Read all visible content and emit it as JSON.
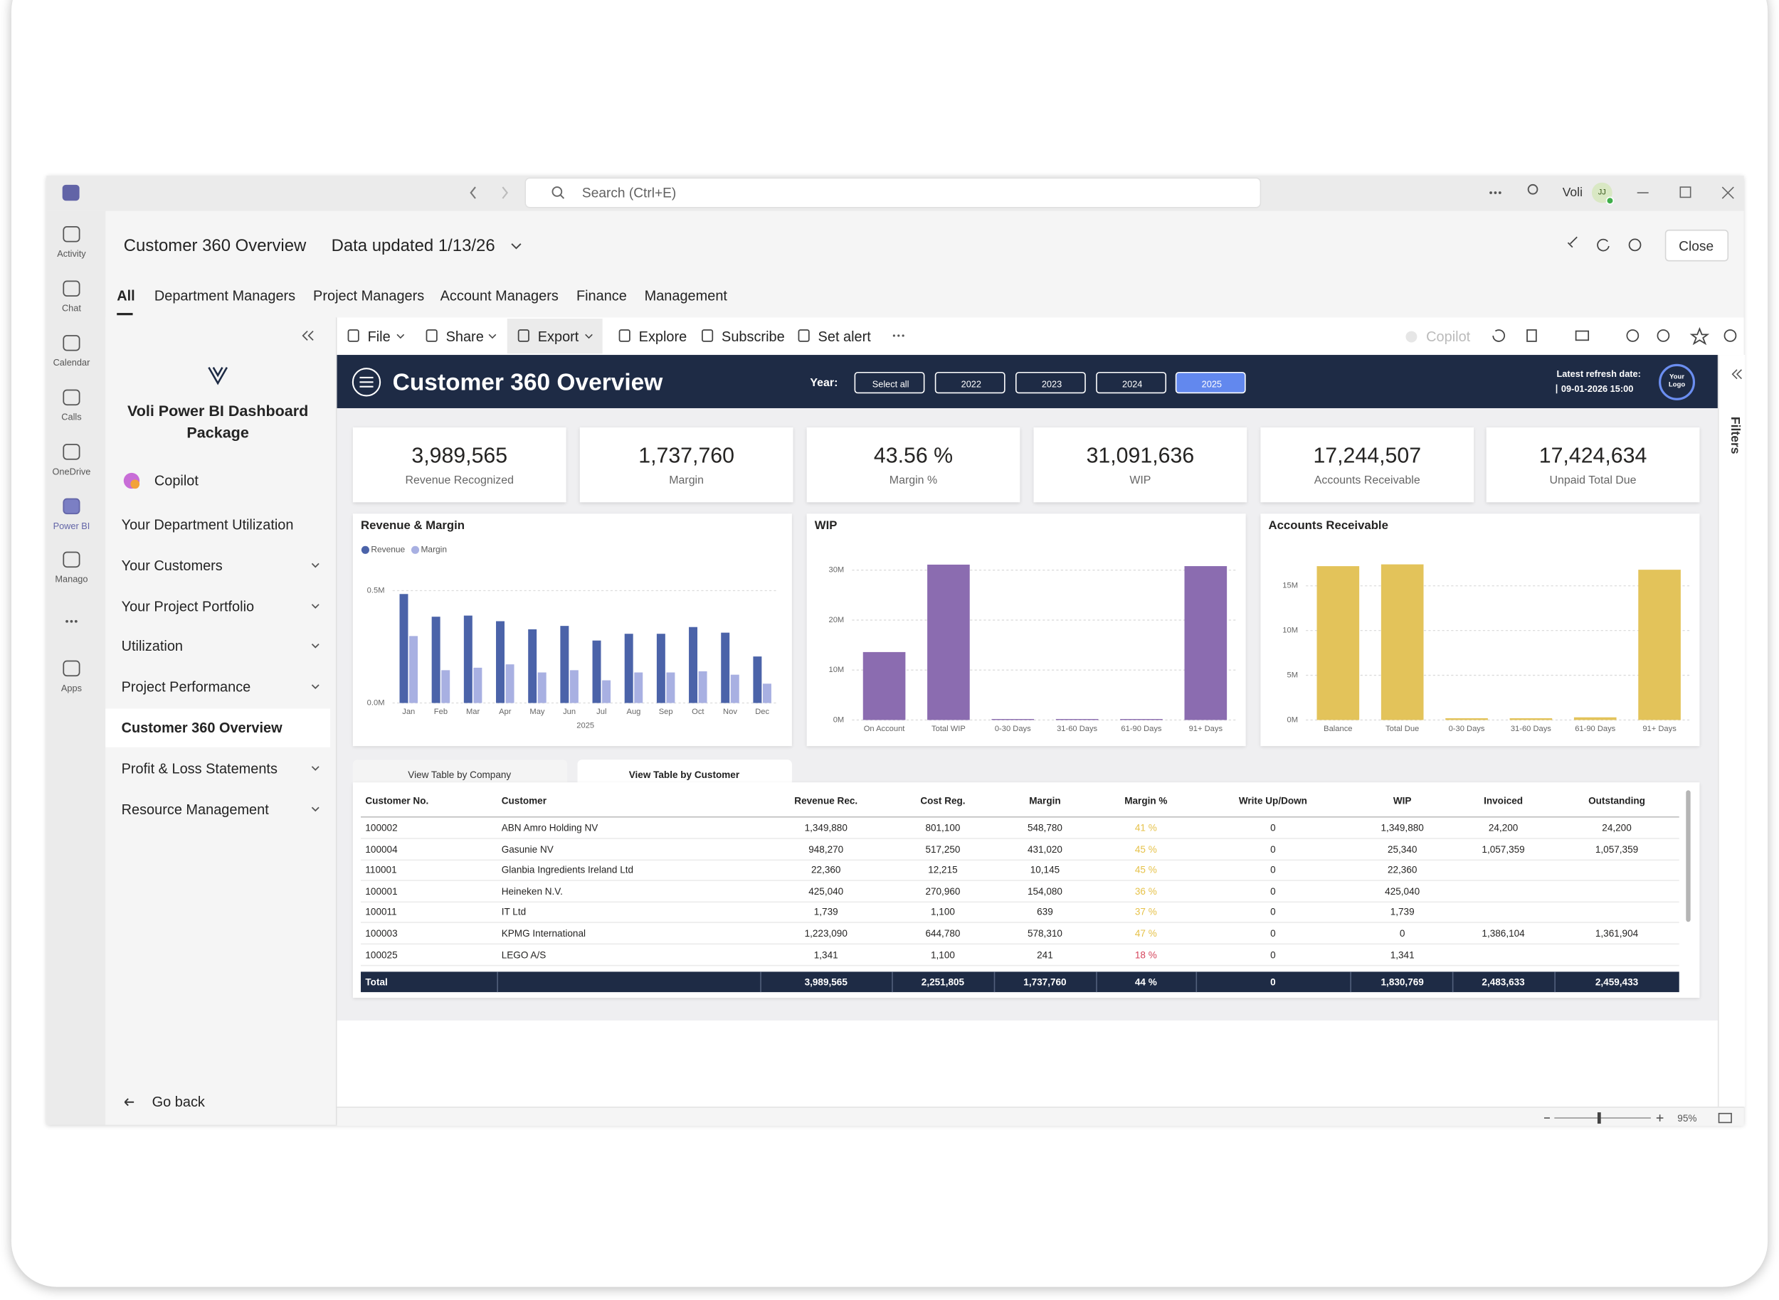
{
  "window": {
    "search": "Search (Ctrl+E)",
    "user": "Voli",
    "initials": "JJ"
  },
  "rail": [
    "Activity",
    "Chat",
    "Calendar",
    "Calls",
    "OneDrive",
    "Power BI",
    "Manago",
    "Apps"
  ],
  "header": {
    "title": "Customer 360 Overview",
    "updated": "Data updated 1/13/26",
    "close": "Close"
  },
  "tabs": [
    "All",
    "Department Managers",
    "Project Managers",
    "Account Managers",
    "Finance",
    "Management"
  ],
  "nav": {
    "package": "Voli Power BI Dashboard Package",
    "copilot": "Copilot",
    "items": [
      {
        "label": "Your Department Utilization",
        "expandable": false
      },
      {
        "label": "Your Customers",
        "expandable": true
      },
      {
        "label": "Your Project Portfolio",
        "expandable": true
      },
      {
        "label": "Utilization",
        "expandable": true
      },
      {
        "label": "Project Performance",
        "expandable": true
      },
      {
        "label": "Customer 360 Overview",
        "expandable": false,
        "selected": true
      },
      {
        "label": "Profit & Loss Statements",
        "expandable": true
      },
      {
        "label": "Resource Management",
        "expandable": true
      }
    ],
    "back": "Go back"
  },
  "toolbar": {
    "items": [
      "File",
      "Share",
      "Export",
      "Explore",
      "Subscribe",
      "Set alert"
    ],
    "copilot": "Copilot"
  },
  "report": {
    "title": "Customer 360 Overview",
    "year_label": "Year:",
    "years": [
      "Select all",
      "2022",
      "2023",
      "2024",
      "2025"
    ],
    "selected_year": "2025",
    "refresh_label": "Latest refresh date:",
    "refresh_date": "09-01-2026 15:00",
    "logo": "Your Logo"
  },
  "kpis": [
    {
      "value": "3,989,565",
      "label": "Revenue Recognized"
    },
    {
      "value": "1,737,760",
      "label": "Margin"
    },
    {
      "value": "43.56 %",
      "label": "Margin %"
    },
    {
      "value": "31,091,636",
      "label": "WIP"
    },
    {
      "value": "17,244,507",
      "label": "Accounts Receivable"
    },
    {
      "value": "17,424,634",
      "label": "Unpaid Total Due"
    }
  ],
  "chart_data": [
    {
      "type": "bar",
      "title": "Revenue & Margin",
      "legend": true,
      "grid": true,
      "categories": [
        "Jan",
        "Feb",
        "Mar",
        "Apr",
        "May",
        "Jun",
        "Jul",
        "Aug",
        "Sep",
        "Oct",
        "Nov",
        "Dec"
      ],
      "group_label": "2025",
      "series": [
        {
          "name": "Revenue",
          "color": "#4b63a9",
          "values": [
            485000,
            384000,
            389000,
            364000,
            328000,
            343000,
            278000,
            308000,
            308000,
            338000,
            313000,
            207000
          ]
        },
        {
          "name": "Margin",
          "color": "#a8b0e2",
          "values": [
            298000,
            146000,
            157000,
            172000,
            136000,
            146000,
            101000,
            136000,
            136000,
            141000,
            126000,
            86000
          ]
        }
      ],
      "ylim": [
        0,
        550000
      ],
      "yticks": [
        {
          "value": 0,
          "label": "0.0M"
        },
        {
          "value": 500000,
          "label": "0.5M"
        }
      ]
    },
    {
      "type": "bar",
      "title": "WIP",
      "legend": false,
      "grid": true,
      "categories": [
        "On Account",
        "Total WIP",
        "0-30 Days",
        "31-60 Days",
        "61-90 Days",
        "91+ Days"
      ],
      "series": [
        {
          "name": "WIP",
          "color": "#8b6cb0",
          "values": [
            13600000,
            31100000,
            200000,
            200000,
            200000,
            30800000
          ]
        }
      ],
      "ylim": [
        0,
        32000000
      ],
      "yticks": [
        {
          "value": 0,
          "label": "0M"
        },
        {
          "value": 10000000,
          "label": "10M"
        },
        {
          "value": 20000000,
          "label": "20M"
        },
        {
          "value": 30000000,
          "label": "30M"
        }
      ]
    },
    {
      "type": "bar",
      "title": "Accounts Receivable",
      "legend": false,
      "grid": true,
      "categories": [
        "Balance",
        "Total Due",
        "0-30 Days",
        "31-60 Days",
        "61-90 Days",
        "91+ Days"
      ],
      "series": [
        {
          "name": "Accounts Receivable",
          "color": "#e3c35a",
          "values": [
            17200000,
            17400000,
            200000,
            200000,
            300000,
            16800000
          ]
        }
      ],
      "ylim": [
        0,
        18000000
      ],
      "yticks": [
        {
          "value": 0,
          "label": "0M"
        },
        {
          "value": 5000000,
          "label": "5M"
        },
        {
          "value": 10000000,
          "label": "10M"
        },
        {
          "value": 15000000,
          "label": "15M"
        }
      ]
    }
  ],
  "table": {
    "tabs": [
      "View Table by Company",
      "View Table by Customer"
    ],
    "columns": [
      "Customer No.",
      "Customer",
      "Revenue Rec.",
      "Cost Reg.",
      "Margin",
      "Margin %",
      "Write Up/Down",
      "WIP",
      "Invoiced",
      "Outstanding"
    ],
    "rows": [
      [
        "100002",
        "ABN Amro Holding NV",
        "1,349,880",
        "801,100",
        "548,780",
        "41 %",
        "0",
        "1,349,880",
        "24,200",
        "24,200"
      ],
      [
        "100004",
        "Gasunie NV",
        "948,270",
        "517,250",
        "431,020",
        "45 %",
        "0",
        "25,340",
        "1,057,359",
        "1,057,359"
      ],
      [
        "110001",
        "Glanbia Ingredients Ireland Ltd",
        "22,360",
        "12,215",
        "10,145",
        "45 %",
        "0",
        "22,360",
        null,
        null
      ],
      [
        "100001",
        "Heineken N.V.",
        "425,040",
        "270,960",
        "154,080",
        "36 %",
        "0",
        "425,040",
        null,
        null
      ],
      [
        "100011",
        "IT Ltd",
        "1,739",
        "1,100",
        "639",
        "37 %",
        "0",
        "1,739",
        null,
        null
      ],
      [
        "100003",
        "KPMG International",
        "1,223,090",
        "644,780",
        "578,310",
        "47 %",
        "0",
        "0",
        "1,386,104",
        "1,361,904"
      ],
      [
        "100025",
        "LEGO A/S",
        "1,341",
        "1,100",
        "241",
        "18 %",
        "0",
        "1,341",
        null,
        null
      ]
    ],
    "margin_colors": [
      "#e6c24a",
      "#e6c24a",
      "#e6c24a",
      "#e6c24a",
      "#e6c24a",
      "#e6c24a",
      "#d6455c"
    ],
    "total": [
      "Total",
      null,
      "3,989,565",
      "2,251,805",
      "1,737,760",
      "44 %",
      "0",
      "1,830,769",
      "2,483,633",
      "2,459,433"
    ]
  },
  "filters": "Filters",
  "zoom": "95%"
}
